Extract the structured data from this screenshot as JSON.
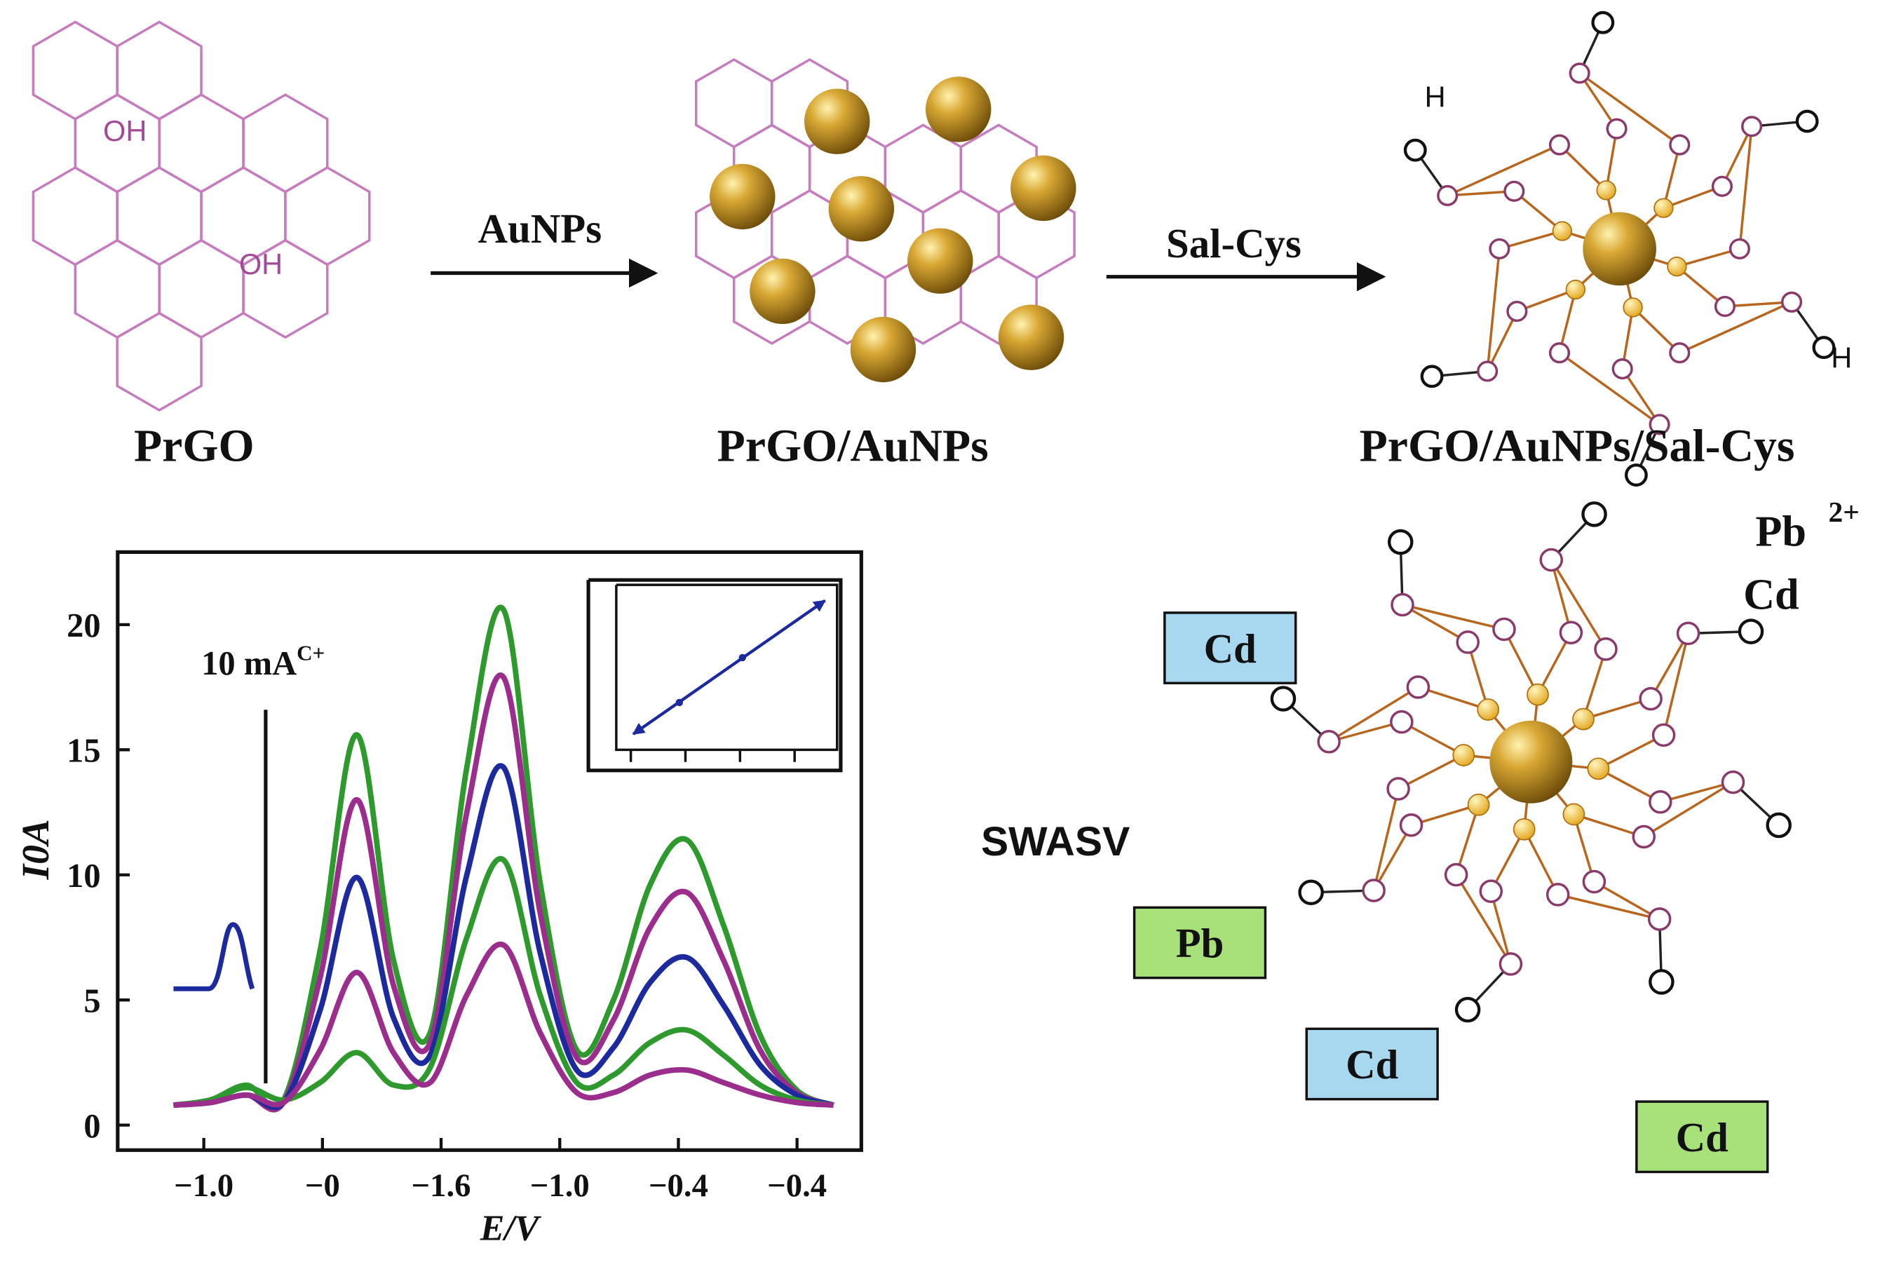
{
  "scheme": {
    "step1_label": "PrGO",
    "oh_labels": [
      "OH",
      "OH"
    ],
    "arrow1_label": "AuNPs",
    "step2_label": "PrGO/AuNPs",
    "arrow2_label": "Sal-Cys",
    "step3_label": "PrGO/AuNPs/Sal-Cys",
    "h_labels": [
      "H",
      "H"
    ]
  },
  "detection": {
    "ion_pb": "Pb",
    "ion_pb_charge": "2+",
    "ion_cd": "Cd",
    "method": "SWASV",
    "tags": [
      "Cd",
      "Pb",
      "Cd",
      "Cd"
    ]
  },
  "chart_data": {
    "type": "line",
    "y_label": "I0A",
    "x_label": "E/V",
    "scale_bar_label": "10 mA",
    "scale_bar_superscript": "C+",
    "xtick_labels": [
      "−1.0",
      "−0",
      "−1.6",
      "−1.0",
      "−0.4",
      "−0.4"
    ],
    "ylim": [
      -1,
      22.9
    ],
    "yticks": [
      0,
      5,
      10,
      15,
      20
    ],
    "series": [
      {
        "color": "#2e9a2e",
        "values": [
          0.8,
          1.0,
          1.6,
          1.0,
          7.0,
          15.6,
          6.6,
          3.7,
          14.3,
          20.6,
          9.7,
          3.0,
          5.0,
          9.6,
          11.4,
          8.0,
          3.6,
          1.4,
          0.8
        ]
      },
      {
        "color": "#9b2d8c",
        "values": [
          0.8,
          0.9,
          1.2,
          0.9,
          5.9,
          13.0,
          5.6,
          3.3,
          12.5,
          17.9,
          8.5,
          2.7,
          4.2,
          7.9,
          9.3,
          6.6,
          3.0,
          1.3,
          0.8
        ]
      },
      {
        "color": "#1c2a9e",
        "values": [
          0.8,
          0.9,
          1.2,
          0.9,
          4.6,
          9.9,
          4.3,
          2.8,
          10.0,
          14.3,
          6.9,
          2.2,
          3.1,
          5.7,
          6.7,
          4.8,
          2.4,
          1.2,
          0.8
        ]
      },
      {
        "color": "#2e9a2e",
        "values": [
          0.8,
          1.0,
          1.5,
          1.0,
          1.7,
          2.9,
          1.6,
          2.3,
          7.5,
          10.6,
          5.2,
          1.7,
          2.0,
          3.3,
          3.8,
          2.8,
          1.6,
          1.0,
          0.8
        ]
      },
      {
        "color": "#9b2d8c",
        "values": [
          0.8,
          0.9,
          1.2,
          0.9,
          3.0,
          6.1,
          2.9,
          1.7,
          5.2,
          7.2,
          3.7,
          1.3,
          1.3,
          2.0,
          2.2,
          1.7,
          1.2,
          0.9,
          0.8
        ]
      }
    ]
  }
}
